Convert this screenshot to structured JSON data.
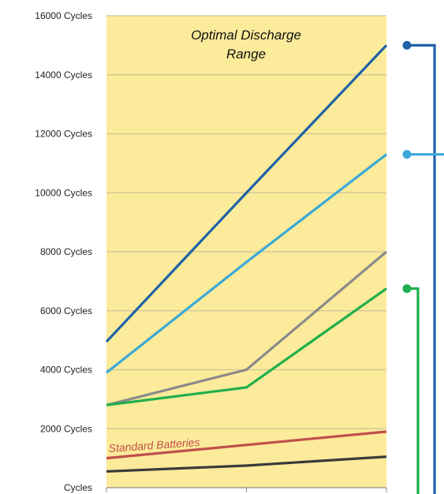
{
  "chart_data": {
    "type": "line",
    "x": [
      0,
      1,
      2
    ],
    "ylim": [
      0,
      16000
    ],
    "y_ticks": [
      {
        "value": 0,
        "label": "Cycles"
      },
      {
        "value": 2000,
        "label": "2000 Cycles"
      },
      {
        "value": 4000,
        "label": "4000 Cycles"
      },
      {
        "value": 6000,
        "label": "6000 Cycles"
      },
      {
        "value": 8000,
        "label": "8000 Cycles"
      },
      {
        "value": 10000,
        "label": "10000 Cycles"
      },
      {
        "value": 12000,
        "label": "12000 Cycles"
      },
      {
        "value": 14000,
        "label": "14000 Cycles"
      },
      {
        "value": 16000,
        "label": "16000 Cycles"
      }
    ],
    "grid": true,
    "legend": "none",
    "background_color": "#fbeb9a",
    "series": [
      {
        "color": "#1f62a7",
        "values": [
          4950,
          10000,
          15000
        ]
      },
      {
        "color": "#3aa8d8",
        "values": [
          3900,
          7650,
          11300
        ]
      },
      {
        "color": "#8a8a8a",
        "values": [
          2800,
          4000,
          8000
        ]
      },
      {
        "color": "#1fae4b",
        "values": [
          2800,
          3400,
          6750
        ]
      },
      {
        "name": "Standard Batteries",
        "color": "#c0504d",
        "values": [
          1000,
          1450,
          1900
        ]
      },
      {
        "color": "#3a3a3a",
        "values": [
          550,
          750,
          1050
        ]
      }
    ],
    "annotations": {
      "region_label_line1": "Optimal Discharge",
      "region_label_line2": "Range"
    },
    "brackets": [
      {
        "color": "#1f62a7",
        "from_value": 15000,
        "to_value": 0
      },
      {
        "color": "#3aa8d8",
        "at_value": 11300
      },
      {
        "color": "#1fae4b",
        "from_value": 6750,
        "to_value": 0
      }
    ]
  }
}
